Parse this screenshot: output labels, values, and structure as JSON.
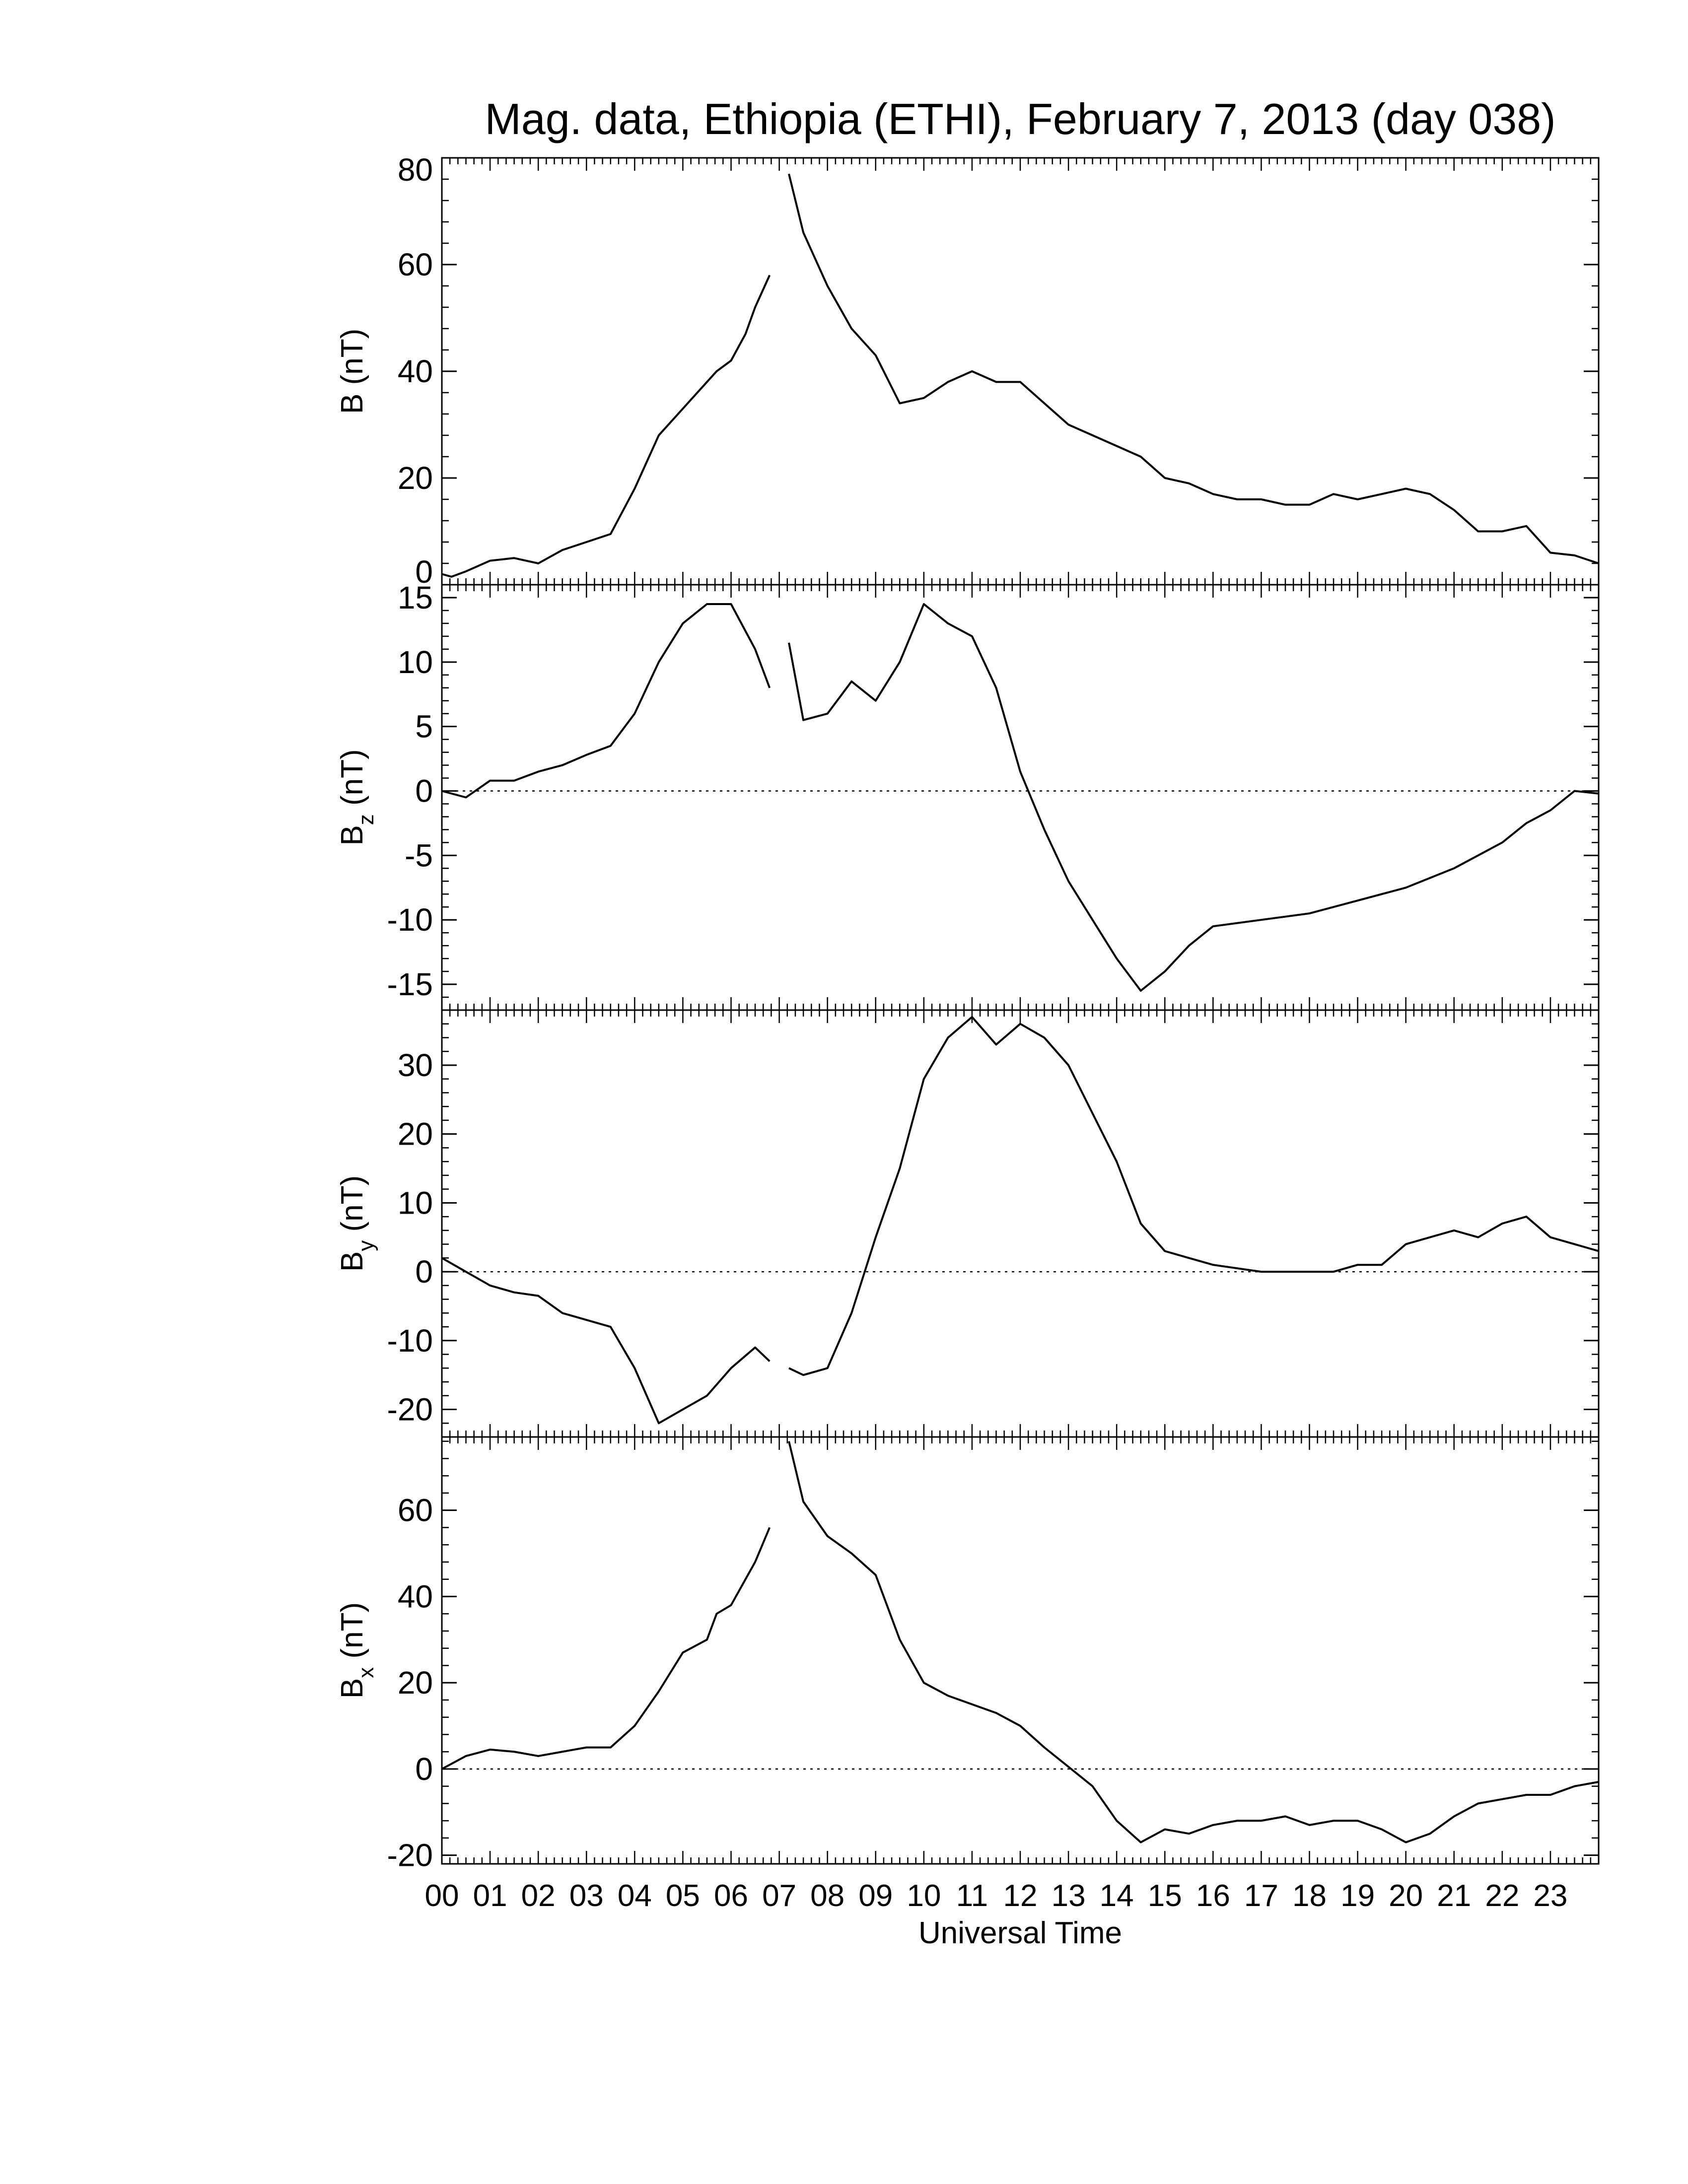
{
  "title": "Mag. data, Ethiopia (ETHI), February 7, 2013 (day 038)",
  "xlabel": "Universal Time",
  "x_tick_labels": [
    "00",
    "01",
    "02",
    "03",
    "04",
    "05",
    "06",
    "07",
    "08",
    "09",
    "10",
    "11",
    "12",
    "13",
    "14",
    "15",
    "16",
    "17",
    "18",
    "19",
    "20",
    "21",
    "22",
    "23"
  ],
  "chart_data": [
    {
      "type": "line",
      "ylabel": "B (nT)",
      "ylim": [
        0,
        80
      ],
      "yticks": [
        0,
        20,
        40,
        60,
        80
      ],
      "zero_line": false,
      "segments": [
        [
          [
            0.0,
            2
          ],
          [
            0.2,
            1.5
          ],
          [
            0.5,
            2.5
          ],
          [
            1.0,
            4.5
          ],
          [
            1.5,
            5
          ],
          [
            2.0,
            4
          ],
          [
            2.5,
            6.5
          ],
          [
            3.0,
            8
          ],
          [
            3.5,
            9.5
          ],
          [
            4.0,
            18
          ],
          [
            4.5,
            28
          ],
          [
            5.0,
            33
          ],
          [
            5.5,
            38
          ],
          [
            5.7,
            40
          ],
          [
            6.0,
            42
          ],
          [
            6.3,
            47
          ],
          [
            6.5,
            52
          ],
          [
            6.8,
            58
          ]
        ],
        [
          [
            7.2,
            77
          ],
          [
            7.5,
            66
          ],
          [
            8.0,
            56
          ],
          [
            8.5,
            48
          ],
          [
            9.0,
            43
          ],
          [
            9.5,
            34
          ],
          [
            10.0,
            35
          ],
          [
            10.5,
            38
          ],
          [
            11.0,
            40
          ],
          [
            11.5,
            38
          ],
          [
            12.0,
            38
          ],
          [
            12.5,
            34
          ],
          [
            13.0,
            30
          ],
          [
            13.5,
            28
          ],
          [
            14.0,
            26
          ],
          [
            14.5,
            24
          ],
          [
            15.0,
            20
          ],
          [
            15.5,
            19
          ],
          [
            16.0,
            17
          ],
          [
            16.5,
            16
          ],
          [
            17.0,
            16
          ],
          [
            17.5,
            15
          ],
          [
            18.0,
            15
          ],
          [
            18.5,
            17
          ],
          [
            19.0,
            16
          ],
          [
            19.5,
            17
          ],
          [
            20.0,
            18
          ],
          [
            20.5,
            17
          ],
          [
            21.0,
            14
          ],
          [
            21.5,
            10
          ],
          [
            22.0,
            10
          ],
          [
            22.5,
            11
          ],
          [
            23.0,
            6
          ],
          [
            23.5,
            5.5
          ],
          [
            24.0,
            4
          ]
        ]
      ]
    },
    {
      "type": "line",
      "ylabel": "B_z (nT)",
      "ylim": [
        -17,
        16
      ],
      "yticks": [
        -15,
        -10,
        -5,
        0,
        5,
        10,
        15
      ],
      "zero_line": true,
      "segments": [
        [
          [
            0.0,
            0
          ],
          [
            0.5,
            -0.5
          ],
          [
            1.0,
            0.8
          ],
          [
            1.5,
            0.8
          ],
          [
            2.0,
            1.5
          ],
          [
            2.5,
            2
          ],
          [
            3.0,
            2.8
          ],
          [
            3.5,
            3.5
          ],
          [
            4.0,
            6
          ],
          [
            4.5,
            10
          ],
          [
            5.0,
            13
          ],
          [
            5.5,
            14.5
          ],
          [
            6.0,
            14.5
          ],
          [
            6.5,
            11
          ],
          [
            6.8,
            8
          ]
        ],
        [
          [
            7.2,
            11.5
          ],
          [
            7.5,
            5.5
          ],
          [
            8.0,
            6
          ],
          [
            8.5,
            8.5
          ],
          [
            9.0,
            7
          ],
          [
            9.5,
            10
          ],
          [
            10.0,
            14.5
          ],
          [
            10.5,
            13
          ],
          [
            11.0,
            12
          ],
          [
            11.5,
            8
          ],
          [
            12.0,
            1.5
          ],
          [
            12.5,
            -3
          ],
          [
            13.0,
            -7
          ],
          [
            13.5,
            -10
          ],
          [
            14.0,
            -13
          ],
          [
            14.5,
            -15.5
          ],
          [
            15.0,
            -14
          ],
          [
            15.5,
            -12
          ],
          [
            16.0,
            -10.5
          ],
          [
            17.0,
            -10
          ],
          [
            18.0,
            -9.5
          ],
          [
            19.0,
            -8.5
          ],
          [
            20.0,
            -7.5
          ],
          [
            21.0,
            -6
          ],
          [
            22.0,
            -4
          ],
          [
            22.5,
            -2.5
          ],
          [
            23.0,
            -1.5
          ],
          [
            23.5,
            0
          ],
          [
            24.0,
            -0.2
          ]
        ]
      ]
    },
    {
      "type": "line",
      "ylabel": "B_y (nT)",
      "ylim": [
        -24,
        38
      ],
      "yticks": [
        -20,
        -10,
        0,
        10,
        20,
        30
      ],
      "zero_line": true,
      "segments": [
        [
          [
            0.0,
            2
          ],
          [
            0.5,
            0
          ],
          [
            1.0,
            -2
          ],
          [
            1.5,
            -3
          ],
          [
            2.0,
            -3.5
          ],
          [
            2.5,
            -6
          ],
          [
            3.0,
            -7
          ],
          [
            3.5,
            -8
          ],
          [
            4.0,
            -14
          ],
          [
            4.5,
            -22
          ],
          [
            5.0,
            -20
          ],
          [
            5.5,
            -18
          ],
          [
            6.0,
            -14
          ],
          [
            6.5,
            -11
          ],
          [
            6.8,
            -13
          ]
        ],
        [
          [
            7.2,
            -14
          ],
          [
            7.5,
            -15
          ],
          [
            8.0,
            -14
          ],
          [
            8.5,
            -6
          ],
          [
            9.0,
            5
          ],
          [
            9.5,
            15
          ],
          [
            10.0,
            28
          ],
          [
            10.5,
            34
          ],
          [
            11.0,
            37
          ],
          [
            11.5,
            33
          ],
          [
            12.0,
            36
          ],
          [
            12.5,
            34
          ],
          [
            13.0,
            30
          ],
          [
            13.5,
            23
          ],
          [
            14.0,
            16
          ],
          [
            14.5,
            7
          ],
          [
            15.0,
            3
          ],
          [
            15.5,
            2
          ],
          [
            16.0,
            1
          ],
          [
            16.5,
            0.5
          ],
          [
            17.0,
            0
          ],
          [
            17.5,
            0
          ],
          [
            18.0,
            0
          ],
          [
            18.5,
            0
          ],
          [
            19.0,
            1
          ],
          [
            19.5,
            1
          ],
          [
            20.0,
            4
          ],
          [
            20.5,
            5
          ],
          [
            21.0,
            6
          ],
          [
            21.5,
            5
          ],
          [
            22.0,
            7
          ],
          [
            22.5,
            8
          ],
          [
            23.0,
            5
          ],
          [
            23.5,
            4
          ],
          [
            24.0,
            3
          ]
        ]
      ]
    },
    {
      "type": "line",
      "ylabel": "B_x (nT)",
      "ylim": [
        -22,
        77
      ],
      "yticks": [
        -20,
        0,
        20,
        40,
        60
      ],
      "zero_line": true,
      "segments": [
        [
          [
            0.0,
            0
          ],
          [
            0.5,
            3
          ],
          [
            1.0,
            4.5
          ],
          [
            1.5,
            4
          ],
          [
            2.0,
            3
          ],
          [
            2.5,
            4
          ],
          [
            3.0,
            5
          ],
          [
            3.5,
            5
          ],
          [
            4.0,
            10
          ],
          [
            4.5,
            18
          ],
          [
            5.0,
            27
          ],
          [
            5.5,
            30
          ],
          [
            5.7,
            36
          ],
          [
            6.0,
            38
          ],
          [
            6.5,
            48
          ],
          [
            6.8,
            56
          ]
        ],
        [
          [
            7.2,
            76
          ],
          [
            7.5,
            62
          ],
          [
            8.0,
            54
          ],
          [
            8.5,
            50
          ],
          [
            9.0,
            45
          ],
          [
            9.5,
            30
          ],
          [
            10.0,
            20
          ],
          [
            10.5,
            17
          ],
          [
            11.0,
            15
          ],
          [
            11.5,
            13
          ],
          [
            12.0,
            10
          ],
          [
            12.5,
            5
          ],
          [
            13.0,
            0.5
          ],
          [
            13.5,
            -4
          ],
          [
            14.0,
            -12
          ],
          [
            14.5,
            -17
          ],
          [
            15.0,
            -14
          ],
          [
            15.5,
            -15
          ],
          [
            16.0,
            -13
          ],
          [
            16.5,
            -12
          ],
          [
            17.0,
            -12
          ],
          [
            17.5,
            -11
          ],
          [
            18.0,
            -13
          ],
          [
            18.5,
            -12
          ],
          [
            19.0,
            -12
          ],
          [
            19.5,
            -14
          ],
          [
            20.0,
            -17
          ],
          [
            20.5,
            -15
          ],
          [
            21.0,
            -11
          ],
          [
            21.5,
            -8
          ],
          [
            22.0,
            -7
          ],
          [
            22.5,
            -6
          ],
          [
            23.0,
            -6
          ],
          [
            23.5,
            -4
          ],
          [
            24.0,
            -3
          ]
        ]
      ]
    }
  ]
}
